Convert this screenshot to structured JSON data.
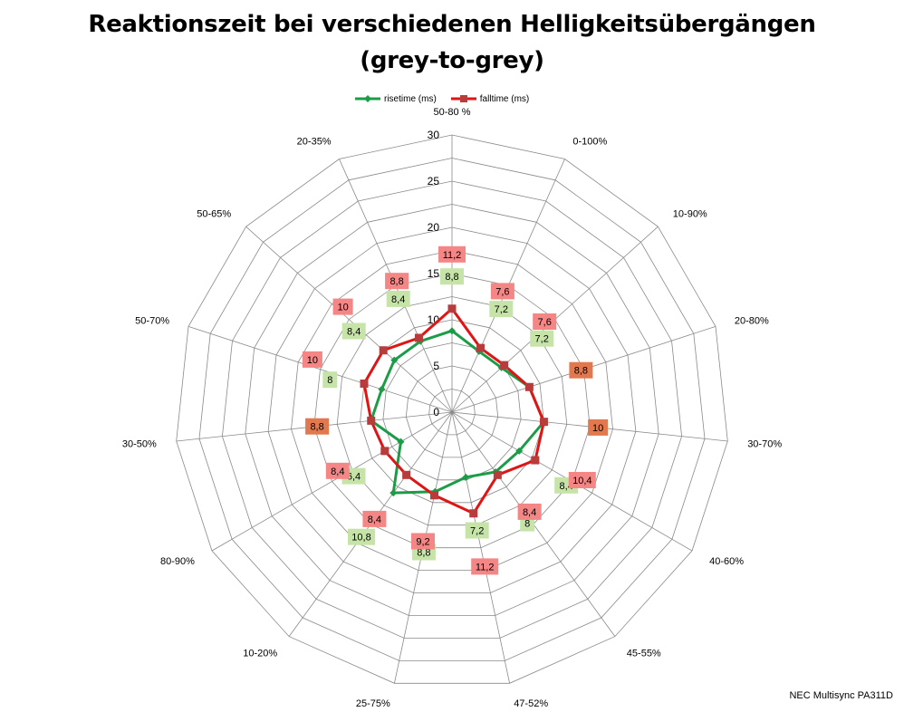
{
  "title_line1": "Reaktionszeit bei verschiedenen Helligkeitsübergängen",
  "title_line2": "(grey-to-grey)",
  "footnote": "NEC Multisync PA311D",
  "colors": {
    "rise_line": "#1c9c46",
    "fall_line": "#e01414",
    "rise_label_bg": "#c6e4a8",
    "fall_label_bg": "#f48686",
    "overlap_label_bg": "#e2794e",
    "grid": "#8a8a8a"
  },
  "chart_data": {
    "type": "radar",
    "categories": [
      "50-80 %",
      "0-100%",
      "10-90%",
      "20-80%",
      "30-70%",
      "40-60%",
      "45-55%",
      "47-52%",
      "25-75%",
      "10-20%",
      "80-90%",
      "30-50%",
      "50-70%",
      "50-65%",
      "20-35%"
    ],
    "series": [
      {
        "name": "risetime (ms)",
        "values": [
          8.8,
          7.2,
          7.2,
          8.8,
          10,
          8.4,
          8,
          7.2,
          8.8,
          10.8,
          6.4,
          8.8,
          8,
          8.4,
          8.4
        ],
        "labels": [
          "8,8",
          "7,2",
          "7,2",
          "8,8",
          "10",
          "8,4",
          "8",
          "7,2",
          "8,8",
          "10,8",
          "6,4",
          "8,8",
          "8",
          "8,4",
          "8,4"
        ]
      },
      {
        "name": "falltime (ms)",
        "values": [
          11.2,
          7.6,
          7.6,
          8.8,
          10,
          10.4,
          8.4,
          11.2,
          9.2,
          8.4,
          8.4,
          8.8,
          10,
          10,
          8.8
        ],
        "labels": [
          "11,2",
          "7,6",
          "7,6",
          "8,8",
          "10",
          "10,4",
          "8,4",
          "11,2",
          "9,2",
          "8,4",
          "8,4",
          "8,8",
          "10",
          "10",
          "8,8"
        ]
      }
    ],
    "axis_ticks": [
      "0",
      "5",
      "10",
      "15",
      "20",
      "25",
      "30"
    ],
    "rlim": [
      0,
      30
    ],
    "grid": true,
    "legend_position": "top"
  }
}
